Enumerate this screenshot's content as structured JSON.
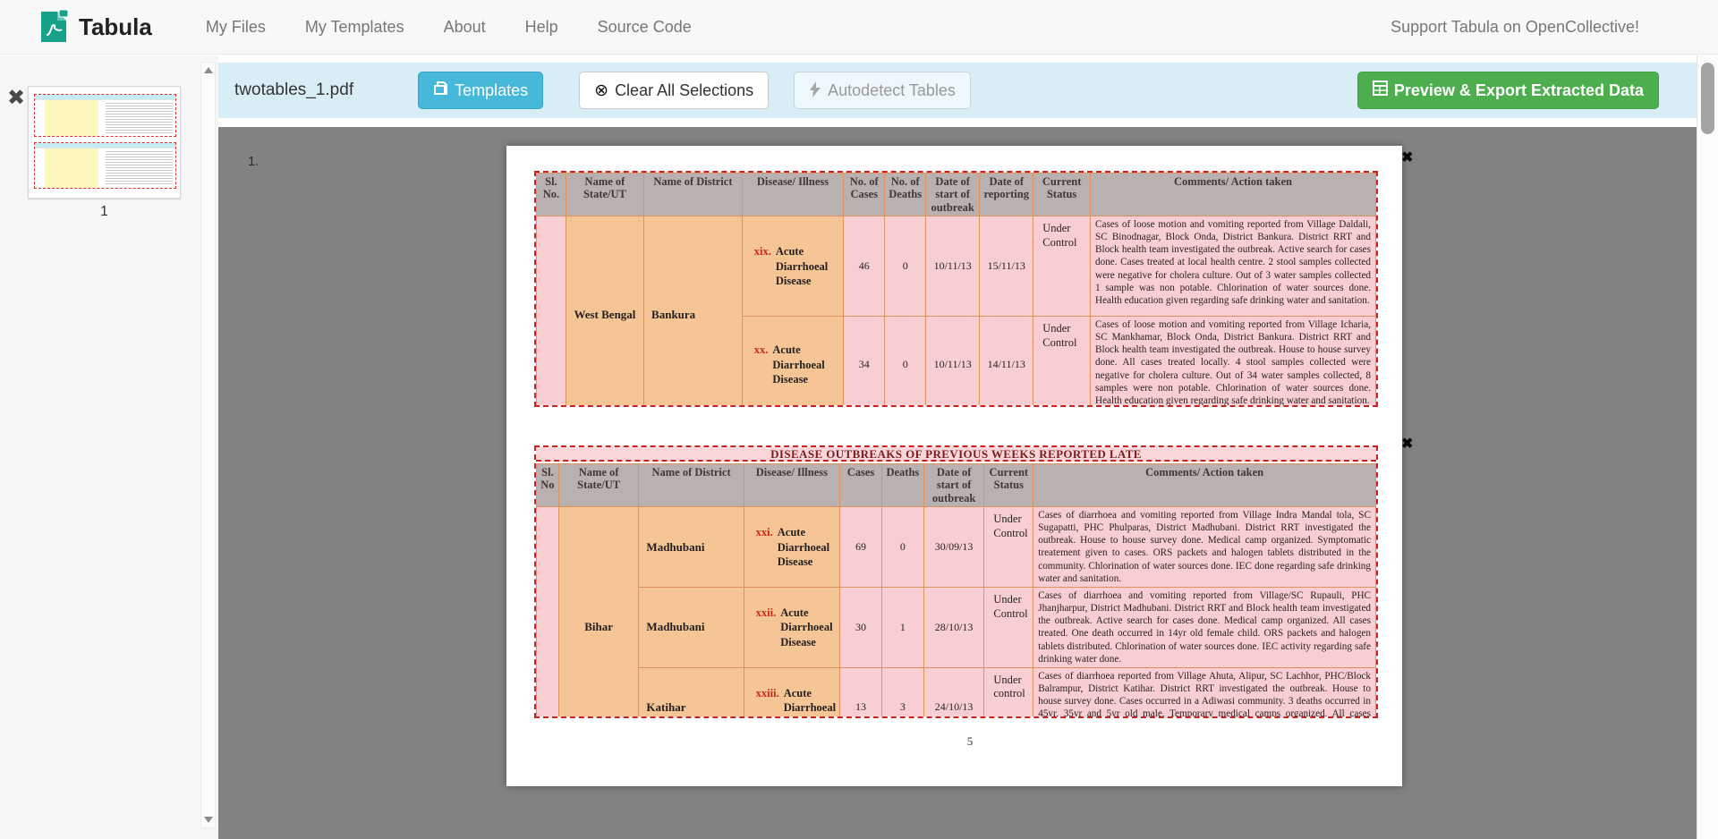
{
  "navbar": {
    "brand": "Tabula",
    "items": [
      {
        "label": "My Files"
      },
      {
        "label": "My Templates"
      },
      {
        "label": "About"
      },
      {
        "label": "Help"
      },
      {
        "label": "Source Code"
      }
    ],
    "support_link": "Support Tabula on OpenCollective!"
  },
  "toolbar": {
    "filename": "twotables_1.pdf",
    "templates_label": "Templates",
    "clear_label": "Clear All Selections",
    "autodetect_label": "Autodetect Tables",
    "export_label": "Preview & Export Extracted Data"
  },
  "sidebar": {
    "page_number": "1"
  },
  "viewer": {
    "page_marker": "1.",
    "pdf_footer_page": "5"
  },
  "pdf_tables": [
    {
      "title": "",
      "headers": [
        "Sl. No.",
        "Name of State/UT",
        "Name of District",
        "Disease/ Illness",
        "No. of Cases",
        "No. of Deaths",
        "Date of start of outbreak",
        "Date of reporting",
        "Current Status",
        "Comments/ Action taken"
      ],
      "state": "West Bengal",
      "rows": [
        {
          "district": "Bankura",
          "district_span": 2,
          "disease_num": "xix.",
          "disease": "Acute Diarrhoeal Disease",
          "cases": "46",
          "deaths": "0",
          "date_start": "10/11/13",
          "date_reporting": "15/11/13",
          "status": "Under Control",
          "comments": "Cases of loose motion and vomiting reported from Village Daldali, SC Binodnagar, Block Onda, District Bankura. District RRT and Block health team investigated the outbreak. Active search for cases done. Cases treated at local health centre. 2 stool samples collected were negative for cholera culture. Out of 3 water samples collected 1 sample was non potable. Chlorination of water sources done. Health education given regarding safe drinking water and sanitation."
        },
        {
          "disease_num": "xx.",
          "disease": "Acute Diarrhoeal Disease",
          "cases": "34",
          "deaths": "0",
          "date_start": "10/11/13",
          "date_reporting": "14/11/13",
          "status": "Under Control",
          "comments": "Cases of loose motion and vomiting reported from Village Icharia, SC Mankhamar, Block Onda, District Bankura. District RRT and Block health team investigated the outbreak. House to house survey done. All cases treated locally. 4 stool samples collected were negative for cholera culture. Out of 34 water samples collected, 8 samples were non potable. Chlorination of water sources done. Health education given regarding safe drinking water and sanitation."
        }
      ]
    },
    {
      "title": "DISEASE OUTBREAKS OF PREVIOUS WEEKS REPORTED LATE",
      "headers": [
        "Sl. No",
        "Name of State/UT",
        "Name of District",
        "Disease/ Illness",
        "Cases",
        "Deaths",
        "Date of start of outbreak",
        "Current Status",
        "Comments/ Action taken"
      ],
      "state": "Bihar",
      "rows": [
        {
          "district": "Madhubani",
          "district_span": 1,
          "disease_num": "xxi.",
          "disease": "Acute Diarrhoeal Disease",
          "cases": "69",
          "deaths": "0",
          "date_start": "30/09/13",
          "status": "Under Control",
          "comments": "Cases of diarrhoea and vomiting reported from Village Indra Mandal tola, SC Sugapatti, PHC Phulparas, District Madhubani. District RRT investigated the outbreak. House to house survey done. Medical camp organized. Symptomatic treatement given to cases. ORS packets and halogen tablets distributed in the community. Chlorination of water sources done. IEC done regarding safe drinking water and sanitation."
        },
        {
          "district": "Madhubani",
          "district_span": 1,
          "disease_num": "xxii.",
          "disease": "Acute Diarrhoeal Disease",
          "cases": "30",
          "deaths": "1",
          "date_start": "28/10/13",
          "status": "Under Control",
          "comments": "Cases of diarrhoea and vomiting reported from Village/SC Rupauli, PHC Jhanjharpur, District Madhubani. District RRT and Block health team investigated the outbreak. Active search for cases done. Medical camp organized. All cases treated. One death occurred in 14yr old female child. ORS packets and halogen tablets distributed. Chlorination of water sources done. IEC activity regarding safe drinking water done."
        },
        {
          "district": "Katihar",
          "district_span": 1,
          "disease_num": "xxiii.",
          "disease": "Acute Diarrhoeal Disease",
          "cases": "13",
          "deaths": "3",
          "date_start": "24/10/13",
          "status": "Under control",
          "comments": "Cases of diarrhoea reported from Village Ahuta, Alipur, SC Lachhor, PHC/Block Balrampur, District Katihar. District RRT investigated the outbreak.  House to house survey done. Cases occurred in a Adiwasi community. 3 deaths occurred in 45yr, 35yr and 5yr old male. Temporary medical camps organized. All cases treated symptomatically. Chlorination of water sources done. Health education given."
        }
      ]
    }
  ],
  "colors": {
    "accent_blue": "#46b8da",
    "accent_green": "#4cae4c",
    "toolbar_bg": "#d9edf7",
    "selection_red": "#cf1f1f",
    "viewer_bg": "#828282",
    "cell_header": "#b9b0b0",
    "cell_orange": "#f5c595",
    "cell_pink": "#f8ced3",
    "cell_border": "#e0925e",
    "thumb_cyan": "#c5ecf0",
    "thumb_yellow": "#fdf7bd",
    "title_maroon": "#7c1d1d"
  }
}
